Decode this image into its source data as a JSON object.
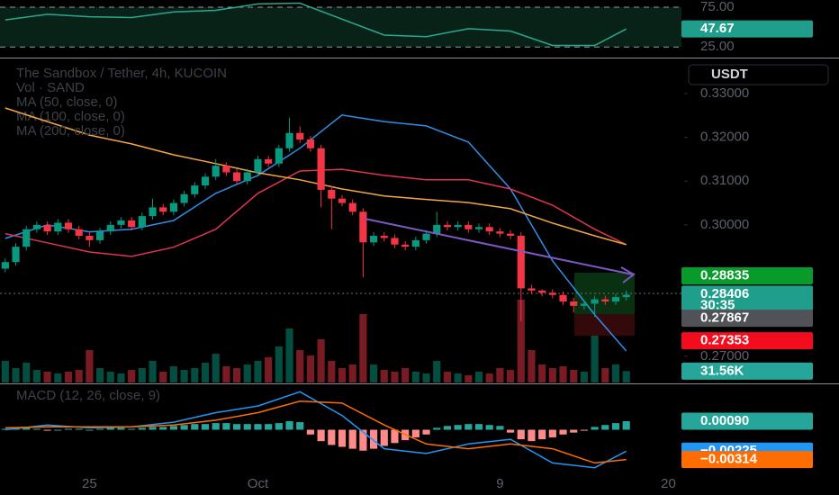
{
  "chart_data": {
    "type": "candlestick",
    "title": "The Sandbox / Tether, 4h, KUCOIN",
    "volume_label": "Vol · SAND",
    "currency": "USDT",
    "up_color": "#089981",
    "down_color": "#f23645",
    "xlim": [
      -0.5,
      64.5
    ],
    "xticks": [
      {
        "value": 8,
        "label": "25"
      },
      {
        "value": 24,
        "label": "Oct"
      },
      {
        "value": 47,
        "label": "9"
      },
      {
        "value": 63,
        "label": "20"
      }
    ],
    "ylim": [
      0.264,
      0.338
    ],
    "yticks": [
      {
        "value": 0.33,
        "label": "0.33000"
      },
      {
        "value": 0.32,
        "label": "0.32000"
      },
      {
        "value": 0.31,
        "label": "0.31000"
      },
      {
        "value": 0.3,
        "label": "0.30000"
      },
      {
        "value": 0.27,
        "label": "0.27000"
      }
    ],
    "ohlc": [
      [
        0.29,
        0.2923,
        0.2892,
        0.2915
      ],
      [
        0.2915,
        0.2958,
        0.2907,
        0.295
      ],
      [
        0.295,
        0.2998,
        0.2942,
        0.299
      ],
      [
        0.299,
        0.3008,
        0.2982,
        0.3
      ],
      [
        0.3,
        0.3008,
        0.2977,
        0.2985
      ],
      [
        0.2985,
        0.3013,
        0.2977,
        0.3005
      ],
      [
        0.3005,
        0.3013,
        0.2982,
        0.299
      ],
      [
        0.299,
        0.2998,
        0.2967,
        0.2975
      ],
      [
        0.2975,
        0.2983,
        0.295,
        0.2965
      ],
      [
        0.2965,
        0.2993,
        0.2957,
        0.2985
      ],
      [
        0.2985,
        0.3008,
        0.2977,
        0.3
      ],
      [
        0.3,
        0.3018,
        0.2992,
        0.301
      ],
      [
        0.301,
        0.3018,
        0.2987,
        0.2995
      ],
      [
        0.2995,
        0.3028,
        0.2987,
        0.302
      ],
      [
        0.302,
        0.306,
        0.3012,
        0.304
      ],
      [
        0.304,
        0.3048,
        0.3022,
        0.303
      ],
      [
        0.303,
        0.3058,
        0.3022,
        0.305
      ],
      [
        0.305,
        0.3078,
        0.3042,
        0.307
      ],
      [
        0.307,
        0.3098,
        0.3062,
        0.309
      ],
      [
        0.309,
        0.3118,
        0.3082,
        0.311
      ],
      [
        0.311,
        0.315,
        0.3102,
        0.3135
      ],
      [
        0.3135,
        0.3143,
        0.3112,
        0.312
      ],
      [
        0.312,
        0.3128,
        0.3092,
        0.31
      ],
      [
        0.31,
        0.3128,
        0.3092,
        0.312
      ],
      [
        0.312,
        0.3158,
        0.3112,
        0.315
      ],
      [
        0.315,
        0.3158,
        0.3132,
        0.314
      ],
      [
        0.314,
        0.3183,
        0.3132,
        0.3175
      ],
      [
        0.3175,
        0.3245,
        0.3167,
        0.321
      ],
      [
        0.321,
        0.3225,
        0.3187,
        0.3195
      ],
      [
        0.3195,
        0.3203,
        0.3167,
        0.3175
      ],
      [
        0.3175,
        0.3183,
        0.304,
        0.308
      ],
      [
        0.308,
        0.3088,
        0.299,
        0.306
      ],
      [
        0.306,
        0.3068,
        0.3042,
        0.305
      ],
      [
        0.305,
        0.3058,
        0.3022,
        0.303
      ],
      [
        0.303,
        0.3038,
        0.288,
        0.296
      ],
      [
        0.296,
        0.2983,
        0.2952,
        0.2975
      ],
      [
        0.2975,
        0.2983,
        0.2962,
        0.297
      ],
      [
        0.297,
        0.2978,
        0.2947,
        0.2955
      ],
      [
        0.2955,
        0.2963,
        0.2942,
        0.295
      ],
      [
        0.295,
        0.2973,
        0.2942,
        0.2965
      ],
      [
        0.2965,
        0.2988,
        0.2957,
        0.298
      ],
      [
        0.298,
        0.303,
        0.2972,
        0.3
      ],
      [
        0.3,
        0.3008,
        0.2987,
        0.2995
      ],
      [
        0.2995,
        0.3008,
        0.2987,
        0.3
      ],
      [
        0.3,
        0.3008,
        0.2982,
        0.299
      ],
      [
        0.299,
        0.3003,
        0.2982,
        0.2995
      ],
      [
        0.2995,
        0.3003,
        0.2977,
        0.2985
      ],
      [
        0.2985,
        0.2993,
        0.2972,
        0.298
      ],
      [
        0.298,
        0.2988,
        0.2967,
        0.2975
      ],
      [
        0.2975,
        0.2983,
        0.278,
        0.2855
      ],
      [
        0.2855,
        0.2863,
        0.2842,
        0.285
      ],
      [
        0.285,
        0.2853,
        0.2837,
        0.2845
      ],
      [
        0.2845,
        0.2853,
        0.2832,
        0.284
      ],
      [
        0.284,
        0.2848,
        0.2817,
        0.2825
      ],
      [
        0.2825,
        0.2833,
        0.28,
        0.2815
      ],
      [
        0.2815,
        0.2828,
        0.2807,
        0.282
      ],
      [
        0.282,
        0.2838,
        0.279,
        0.283
      ],
      [
        0.283,
        0.2838,
        0.2817,
        0.2825
      ],
      [
        0.2825,
        0.2843,
        0.2817,
        0.2835
      ],
      [
        0.2835,
        0.285,
        0.2827,
        0.28406
      ]
    ],
    "volume_lim": [
      0,
      250000
    ],
    "volume": [
      60000,
      40000,
      55000,
      35000,
      30000,
      25000,
      30000,
      35000,
      90000,
      40000,
      30000,
      25000,
      35000,
      40000,
      60000,
      30000,
      45000,
      35000,
      40000,
      55000,
      80000,
      45000,
      40000,
      50000,
      60000,
      70000,
      100000,
      150000,
      90000,
      75000,
      120000,
      60000,
      40000,
      50000,
      190000,
      50000,
      35000,
      30000,
      40000,
      30000,
      25000,
      60000,
      30000,
      25000,
      20000,
      30000,
      25000,
      40000,
      35000,
      230000,
      90000,
      50000,
      40000,
      45000,
      35000,
      30000,
      130000,
      40000,
      50000,
      31560
    ],
    "volume_tag": {
      "value": 31560,
      "label": "31.56K",
      "color": "#26a69a"
    },
    "ma": [
      {
        "name": "MA (50, close, 0)",
        "color": "#2f8fe8",
        "x": [
          0,
          4,
          8,
          12,
          16,
          20,
          24,
          28,
          32,
          36,
          40,
          44,
          48,
          52,
          56,
          59
        ],
        "values": [
          0.2969,
          0.3,
          0.2984,
          0.299,
          0.301,
          0.3072,
          0.3113,
          0.3175,
          0.3251,
          0.3236,
          0.3226,
          0.3189,
          0.3082,
          0.2918,
          0.2795,
          0.2712
        ]
      },
      {
        "name": "MA (100, close, 0)",
        "color": "#e0344f",
        "x": [
          0,
          4,
          8,
          12,
          16,
          20,
          24,
          28,
          32,
          36,
          40,
          44,
          48,
          52,
          56,
          59
        ],
        "values": [
          0.298,
          0.2959,
          0.2938,
          0.2928,
          0.2949,
          0.299,
          0.3072,
          0.3123,
          0.3127,
          0.3113,
          0.3103,
          0.3103,
          0.3082,
          0.3045,
          0.299,
          0.2955
        ]
      },
      {
        "name": "MA (200, close, 0)",
        "color": "#f5a742",
        "x": [
          0,
          4,
          8,
          12,
          16,
          20,
          24,
          28,
          32,
          36,
          40,
          44,
          48,
          52,
          56,
          59
        ],
        "values": [
          0.3267,
          0.3236,
          0.3205,
          0.3185,
          0.316,
          0.314,
          0.3119,
          0.3103,
          0.3082,
          0.3066,
          0.3058,
          0.3051,
          0.3037,
          0.3004,
          0.2975,
          0.2955
        ]
      }
    ],
    "price_tags": [
      {
        "value": 0.28835,
        "label": "0.28835",
        "color": "#089b2a"
      },
      {
        "value": 0.28406,
        "label": "0.28406",
        "countdown": "30:35",
        "color": "#1e9e8b"
      },
      {
        "value": 0.27867,
        "label": "0.27867",
        "color": "#505257"
      },
      {
        "value": 0.27353,
        "label": "0.27353",
        "color": "#f20c1d"
      }
    ],
    "rsi": {
      "color": "#2aa88f",
      "ylim": [
        14,
        84
      ],
      "yticks": [
        {
          "value": 75,
          "label": "75.00"
        },
        {
          "value": 25,
          "label": "25.00"
        }
      ],
      "x": [
        0,
        4,
        8,
        12,
        16,
        20,
        24,
        28,
        32,
        36,
        40,
        44,
        48,
        52,
        56,
        59
      ],
      "values": [
        59,
        66,
        63,
        62,
        69,
        71,
        79,
        80,
        60,
        40,
        38,
        48,
        45,
        27,
        27,
        47.67
      ],
      "tag": {
        "value": 47.67,
        "label": "47.67",
        "color": "#1e9e8b"
      }
    },
    "macd": {
      "title": "MACD (12, 26, close, 9)",
      "ylim": [
        -0.0045,
        0.0045
      ],
      "positive_color": "#26a69a",
      "negative_color": "#ff8a8a",
      "histogram": [
        0.0001,
        0.0002,
        0.0002,
        0.0001,
        -0.0001,
        0.0,
        0.0001,
        0.0001,
        0.0,
        0.0001,
        0.0002,
        0.0002,
        0.0001,
        0.0002,
        0.0003,
        0.0003,
        0.0004,
        0.0005,
        0.0006,
        0.0006,
        0.0007,
        0.0007,
        0.0006,
        0.0006,
        0.0006,
        0.0006,
        0.0007,
        0.0009,
        0.0008,
        -0.0005,
        -0.0012,
        -0.0016,
        -0.0018,
        -0.002,
        -0.0022,
        -0.002,
        -0.0017,
        -0.0014,
        -0.0011,
        -0.0008,
        -0.0005,
        0.0002,
        0.0004,
        0.0005,
        0.0006,
        0.0006,
        0.0005,
        0.0004,
        -0.0003,
        -0.001,
        -0.0012,
        -0.001,
        -0.0008,
        -0.0005,
        -0.0003,
        -0.0001,
        0.0003,
        0.0005,
        0.0007,
        0.0009
      ],
      "series": [
        {
          "color": "#2196f3",
          "x": [
            0,
            4,
            8,
            12,
            16,
            20,
            24,
            28,
            32,
            36,
            40,
            44,
            48,
            52,
            56,
            59
          ],
          "values": [
            0.0,
            0.0005,
            0.0002,
            0.0003,
            0.0008,
            0.0018,
            0.0025,
            0.004,
            0.0015,
            -0.002,
            -0.0025,
            -0.0015,
            -0.001,
            -0.0035,
            -0.004,
            -0.00225
          ]
        },
        {
          "color": "#ff6d00",
          "x": [
            0,
            4,
            8,
            12,
            16,
            20,
            24,
            28,
            32,
            36,
            40,
            44,
            48,
            52,
            56,
            59
          ],
          "values": [
            0.0002,
            0.0003,
            0.0003,
            0.0003,
            0.0005,
            0.001,
            0.0018,
            0.003,
            0.0028,
            0.0005,
            -0.0015,
            -0.002,
            -0.0015,
            -0.002,
            -0.0035,
            -0.00314
          ]
        }
      ],
      "tags": [
        {
          "value": 0.0009,
          "label": "0.00090",
          "color": "#26a69a"
        },
        {
          "value": -0.00225,
          "label": "−0.00225",
          "color": "#2196f3"
        },
        {
          "value": -0.00314,
          "label": "−0.00314",
          "color": "#ff6d00"
        }
      ]
    }
  }
}
